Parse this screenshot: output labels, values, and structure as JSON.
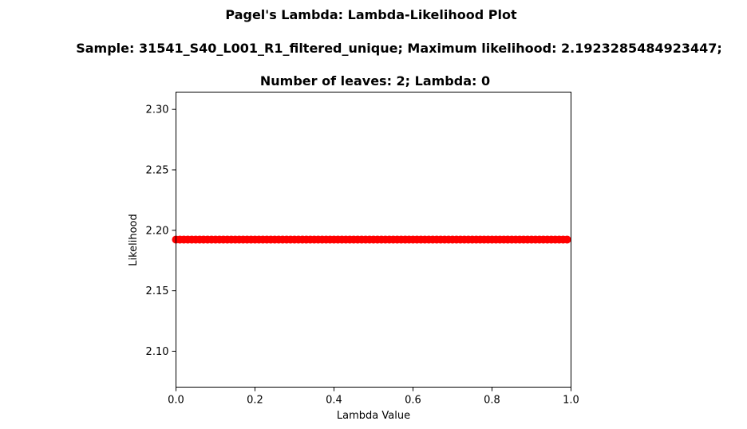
{
  "chart_data": {
    "type": "scatter",
    "title_lines": [
      "Pagel's Lambda: Lambda-Likelihood Plot",
      "Sample: 31541_S40_L001_R1_filtered_unique; Maximum likelihood: 2.1923285484923447;",
      "Number of leaves: 2; Lambda: 0"
    ],
    "xlabel": "Lambda Value",
    "ylabel": "Likelihood",
    "xlim": [
      0.0,
      1.0
    ],
    "ylim": [
      2.0703,
      2.3143
    ],
    "xticks": [
      {
        "value": 0.0,
        "label": "0.0"
      },
      {
        "value": 0.2,
        "label": "0.2"
      },
      {
        "value": 0.4,
        "label": "0.4"
      },
      {
        "value": 0.6,
        "label": "0.6"
      },
      {
        "value": 0.8,
        "label": "0.8"
      },
      {
        "value": 1.0,
        "label": "1.0"
      }
    ],
    "yticks": [
      {
        "value": 2.1,
        "label": "2.10"
      },
      {
        "value": 2.15,
        "label": "2.15"
      },
      {
        "value": 2.2,
        "label": "2.20"
      },
      {
        "value": 2.25,
        "label": "2.25"
      },
      {
        "value": 2.3,
        "label": "2.30"
      }
    ],
    "grid": false,
    "series": [
      {
        "color": "#ff0000",
        "marker": "circle",
        "x_start": 0.0,
        "x_end": 0.99,
        "x_step": 0.01,
        "y_constant": 2.1923285484923447
      }
    ]
  }
}
